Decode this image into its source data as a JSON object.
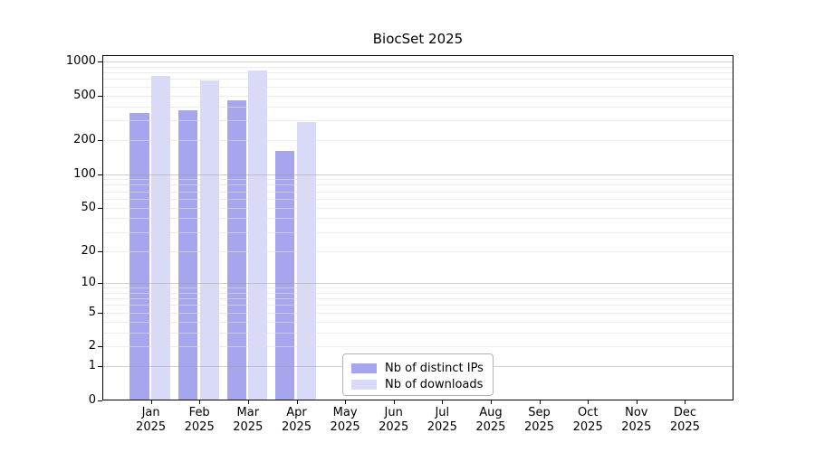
{
  "figure": {
    "title": "BiocSet 2025"
  },
  "chart_data": {
    "type": "bar",
    "title": "BiocSet 2025",
    "x_month_labels": [
      "Jan",
      "Feb",
      "Mar",
      "Apr",
      "May",
      "Jun",
      "Jul",
      "Aug",
      "Sep",
      "Oct",
      "Nov",
      "Dec"
    ],
    "x_year_label": "2025",
    "series": [
      {
        "name": "Nb of distinct IPs",
        "color": "#a6a6ee",
        "values": [
          350,
          370,
          452,
          160,
          null,
          null,
          null,
          null,
          null,
          null,
          null,
          null
        ]
      },
      {
        "name": "Nb of downloads",
        "color": "#d9d9f8",
        "values": [
          745,
          680,
          830,
          290,
          null,
          null,
          null,
          null,
          null,
          null,
          null,
          null
        ]
      }
    ],
    "yscale": "log10(1+y)",
    "ylim": [
      0,
      1130
    ],
    "yticks": [
      0,
      1,
      2,
      5,
      10,
      20,
      50,
      100,
      200,
      500,
      1000
    ],
    "grid": {
      "horizontal": true,
      "major_values": [
        1,
        10,
        100,
        1000
      ],
      "minor_values": [
        2,
        3,
        4,
        5,
        6,
        7,
        8,
        9,
        20,
        30,
        40,
        50,
        60,
        70,
        80,
        90,
        200,
        300,
        400,
        500,
        600,
        700,
        800,
        900
      ]
    },
    "legend": {
      "position": "bottom-center-inside",
      "entries": [
        "Nb of distinct IPs",
        "Nb of downloads"
      ]
    }
  }
}
